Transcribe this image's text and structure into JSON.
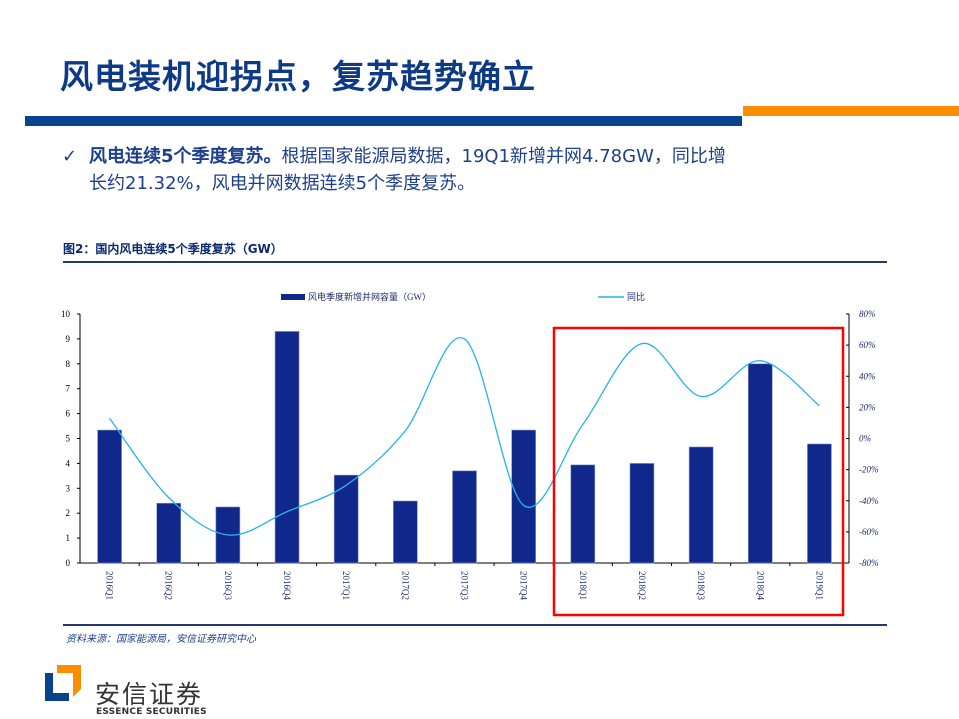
{
  "slide": {
    "title": "风电装机迎拐点，复苏趋势确立",
    "bullet": {
      "check": "✓",
      "bold": "风电连续5个季度复苏。",
      "line1_rest": "根据国家能源局数据，19Q1新增并网4.78GW，同比增",
      "line2": "长约21.32%，风电并网数据连续5个季度复苏。"
    },
    "figure_title": "图2：国内风电连续5个季度复苏（GW）",
    "source": "资料来源：国家能源局，安信证券研究中心",
    "logo": {
      "cn": "安信证券",
      "en": "ESSENCE SECURITIES"
    }
  },
  "colors": {
    "bar": "#10288c",
    "line": "#25b4ea",
    "highlight_box": "#ff0000",
    "title": "#0d3a86",
    "accent_orange": "#fb8e00",
    "accent_blue": "#0b428d"
  },
  "chart_data": {
    "type": "bar",
    "title": "国内风电连续5个季度复苏（GW）",
    "categories": [
      "2016Q1",
      "2016Q2",
      "2016Q3",
      "2016Q4",
      "2017Q1",
      "2017Q2",
      "2017Q3",
      "2017Q4",
      "2018Q1",
      "2018Q2",
      "2018Q3",
      "2018Q4",
      "2019Q1"
    ],
    "series": [
      {
        "name": "风电季度新增并网容量（GW）",
        "type": "bar",
        "axis": "left",
        "values": [
          5.34,
          2.4,
          2.25,
          9.3,
          3.53,
          2.49,
          3.7,
          5.34,
          3.94,
          4.0,
          4.66,
          8.0,
          4.78
        ]
      },
      {
        "name": "同比",
        "type": "line",
        "axis": "right",
        "unit": "%",
        "values": [
          13,
          -38,
          -62,
          -47,
          -30,
          5,
          64,
          -43,
          9,
          61,
          27,
          50,
          21
        ]
      }
    ],
    "ylim_left": [
      0,
      10
    ],
    "yticks_left": [
      "0",
      "1",
      "2",
      "3",
      "4",
      "5",
      "6",
      "7",
      "8",
      "9",
      "10"
    ],
    "ylim_right": [
      -80,
      80
    ],
    "yticks_right": [
      "-80%",
      "-60%",
      "-40%",
      "-20%",
      "0%",
      "20%",
      "40%",
      "60%",
      "80%"
    ],
    "legend_position": "top",
    "grid": false,
    "annotation": "red box highlighting 2018Q1–2019Q1"
  }
}
